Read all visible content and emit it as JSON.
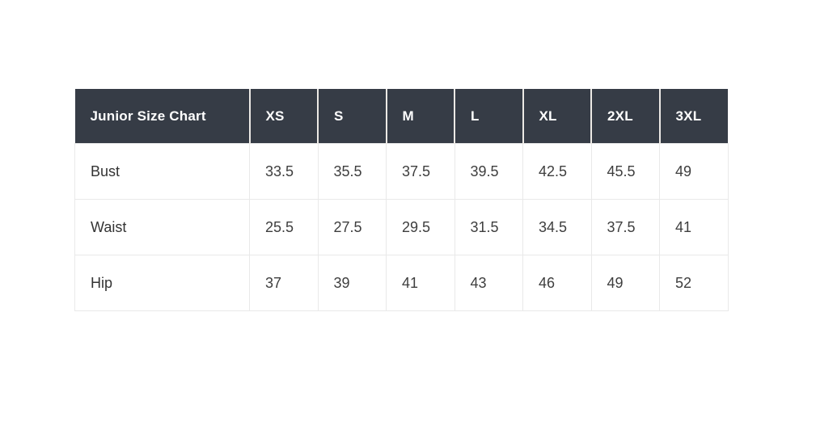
{
  "table": {
    "title_cell": "Junior Size Chart",
    "size_headers": [
      "XS",
      "S",
      "M",
      "L",
      "XL",
      "2XL",
      "3XL"
    ],
    "rows": [
      {
        "label": "Bust",
        "values": [
          "33.5",
          "35.5",
          "37.5",
          "39.5",
          "42.5",
          "45.5",
          "49"
        ]
      },
      {
        "label": "Waist",
        "values": [
          "25.5",
          "27.5",
          "29.5",
          "31.5",
          "34.5",
          "37.5",
          "41"
        ]
      },
      {
        "label": "Hip",
        "values": [
          "37",
          "39",
          "41",
          "43",
          "46",
          "49",
          "52"
        ]
      }
    ]
  },
  "colors": {
    "header_bg": "#363c46",
    "header_text": "#ffffff",
    "header_divider": "#ece9e5",
    "body_text": "#3e3e3e",
    "cell_border": "#e9e9e9",
    "page_bg": "#ffffff"
  },
  "chart_data": {
    "type": "table",
    "title": "Junior Size Chart",
    "columns": [
      "XS",
      "S",
      "M",
      "L",
      "XL",
      "2XL",
      "3XL"
    ],
    "row_labels": [
      "Bust",
      "Waist",
      "Hip"
    ],
    "rows": [
      {
        "measurement": "Bust",
        "values": [
          33.5,
          35.5,
          37.5,
          39.5,
          42.5,
          45.5,
          49
        ]
      },
      {
        "measurement": "Waist",
        "values": [
          25.5,
          27.5,
          29.5,
          31.5,
          34.5,
          37.5,
          41
        ]
      },
      {
        "measurement": "Hip",
        "values": [
          37,
          39,
          41,
          43,
          46,
          49,
          52
        ]
      }
    ]
  }
}
